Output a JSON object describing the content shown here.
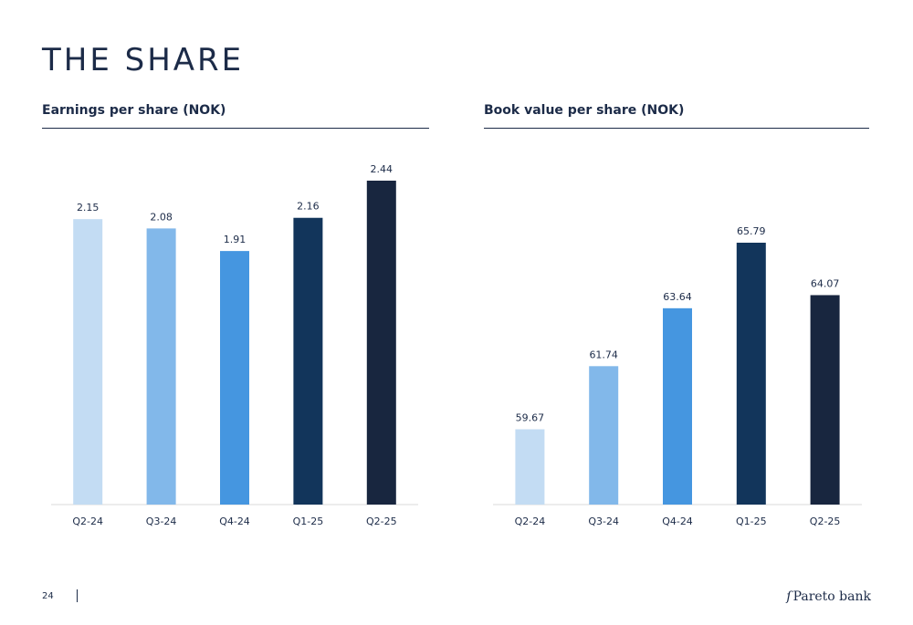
{
  "page": {
    "title": "THE SHARE",
    "page_number": "24",
    "logo_text": "Pareto bank"
  },
  "colors": [
    "#c3dcf3",
    "#82b8ea",
    "#4596e0",
    "#12355b",
    "#18263f"
  ],
  "chart_data": [
    {
      "type": "bar",
      "title": "Earnings per share (NOK)",
      "categories": [
        "Q2-24",
        "Q3-24",
        "Q4-24",
        "Q1-25",
        "Q2-25"
      ],
      "values": [
        2.15,
        2.08,
        1.91,
        2.16,
        2.44
      ],
      "value_labels": [
        "2.15",
        "2.08",
        "1.91",
        "2.16",
        "2.44"
      ],
      "ylim": [
        0,
        2.44
      ],
      "grid": false,
      "legend": "none"
    },
    {
      "type": "bar",
      "title": "Book value per share (NOK)",
      "categories": [
        "Q2-24",
        "Q3-24",
        "Q4-24",
        "Q1-25",
        "Q2-25"
      ],
      "values": [
        59.67,
        61.74,
        63.64,
        65.79,
        64.07
      ],
      "value_labels": [
        "59.67",
        "61.74",
        "63.64",
        "65.79",
        "64.07"
      ],
      "ylim": [
        57.2,
        65.79
      ],
      "grid": false,
      "legend": "none"
    }
  ]
}
